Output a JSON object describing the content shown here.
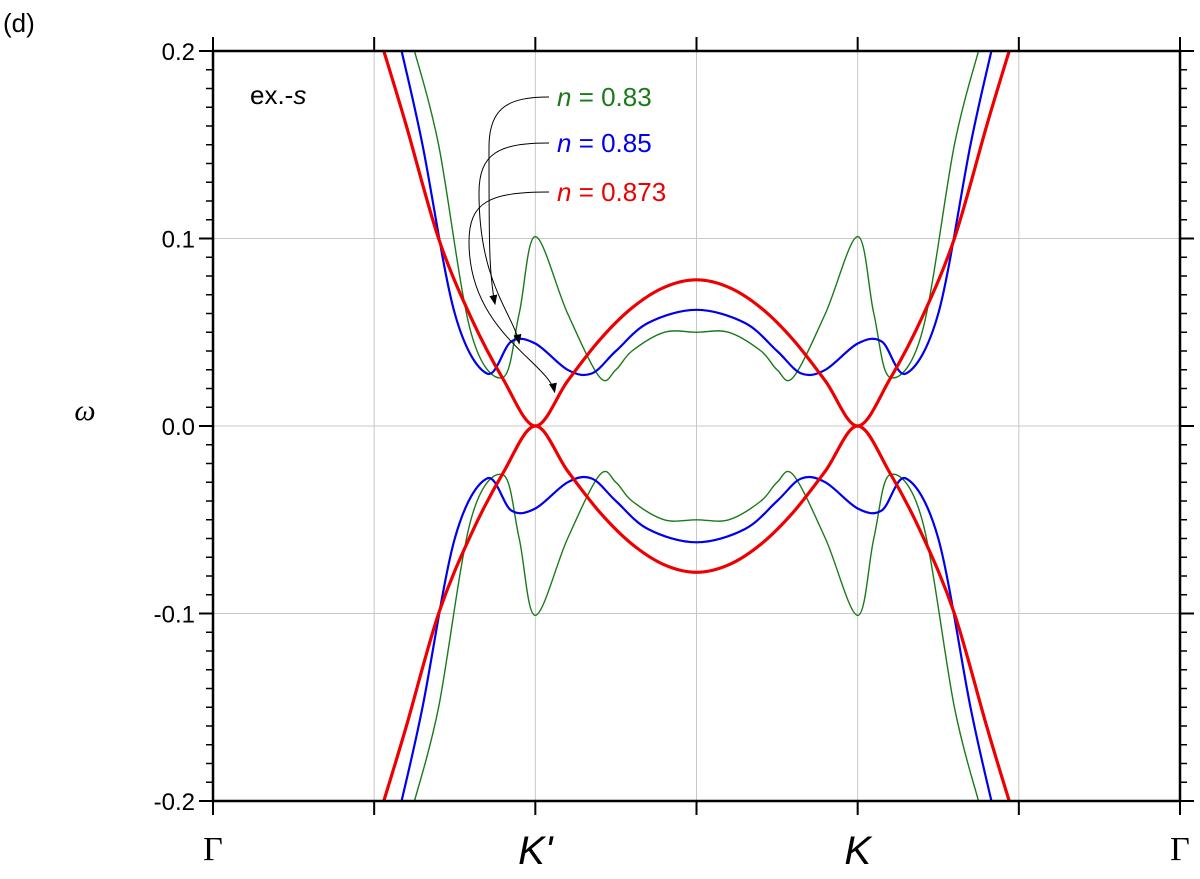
{
  "panel_label": "(d)",
  "chart_data": {
    "type": "line",
    "title": "",
    "ylabel": "ω",
    "ylim": [
      -0.2,
      0.2
    ],
    "yticks": [
      -0.2,
      -0.1,
      0.0,
      0.1,
      0.2
    ],
    "ytick_labels": [
      "-0.2",
      "-0.1",
      "0.0",
      "0.1",
      "0.2"
    ],
    "xlim": [
      0,
      6
    ],
    "xticks": [
      {
        "x": 0,
        "label": "Γ",
        "style": "serif"
      },
      {
        "x": 1,
        "label": "",
        "style": "none"
      },
      {
        "x": 2,
        "label": "K'",
        "style": "italic"
      },
      {
        "x": 3,
        "label": "",
        "style": "none"
      },
      {
        "x": 4,
        "label": "K",
        "style": "italic"
      },
      {
        "x": 5,
        "label": "",
        "style": "none"
      },
      {
        "x": 6,
        "label": "Γ",
        "style": "serif"
      }
    ],
    "grid": true,
    "inset_label": {
      "prefix": "ex.-",
      "italic": "s"
    },
    "series": [
      {
        "name": "n = 0.83",
        "label_var": "n",
        "label_value": "= 0.83",
        "color": "#1a7a1a",
        "width": 1.4,
        "bands": [
          {
            "x": [
              1.25,
              1.4,
              1.6,
              1.8,
              1.9,
              2.0,
              2.2,
              2.4,
              2.5,
              2.6,
              2.8,
              3.0,
              3.2,
              3.4,
              3.5,
              3.6,
              3.8,
              4.0,
              4.1,
              4.2,
              4.4,
              4.6,
              4.75
            ],
            "y": [
              0.2,
              0.15,
              0.05,
              0.026,
              0.06,
              0.101,
              0.06,
              0.026,
              0.03,
              0.04,
              0.05,
              0.05,
              0.05,
              0.04,
              0.03,
              0.026,
              0.06,
              0.101,
              0.06,
              0.026,
              0.05,
              0.15,
              0.2
            ]
          },
          {
            "x": [
              1.25,
              1.4,
              1.6,
              1.8,
              1.9,
              2.0,
              2.2,
              2.4,
              2.5,
              2.6,
              2.8,
              3.0,
              3.2,
              3.4,
              3.5,
              3.6,
              3.8,
              4.0,
              4.1,
              4.2,
              4.4,
              4.6,
              4.75
            ],
            "y": [
              -0.2,
              -0.15,
              -0.05,
              -0.026,
              -0.06,
              -0.101,
              -0.06,
              -0.026,
              -0.03,
              -0.04,
              -0.05,
              -0.05,
              -0.05,
              -0.04,
              -0.03,
              -0.026,
              -0.06,
              -0.101,
              -0.06,
              -0.026,
              -0.05,
              -0.15,
              -0.2
            ]
          }
        ]
      },
      {
        "name": "n = 0.85",
        "label_var": "n",
        "label_value": "= 0.85",
        "color": "#0000ee",
        "width": 2.2,
        "bands": [
          {
            "x": [
              1.17,
              1.3,
              1.5,
              1.7,
              1.85,
              2.0,
              2.2,
              2.35,
              2.5,
              2.7,
              3.0,
              3.3,
              3.5,
              3.65,
              3.8,
              4.0,
              4.15,
              4.3,
              4.5,
              4.7,
              4.83
            ],
            "y": [
              0.2,
              0.15,
              0.06,
              0.028,
              0.045,
              0.044,
              0.03,
              0.028,
              0.04,
              0.055,
              0.062,
              0.055,
              0.04,
              0.028,
              0.03,
              0.044,
              0.045,
              0.028,
              0.06,
              0.15,
              0.2
            ]
          },
          {
            "x": [
              1.17,
              1.3,
              1.5,
              1.7,
              1.85,
              2.0,
              2.2,
              2.35,
              2.5,
              2.7,
              3.0,
              3.3,
              3.5,
              3.65,
              3.8,
              4.0,
              4.15,
              4.3,
              4.5,
              4.7,
              4.83
            ],
            "y": [
              -0.2,
              -0.15,
              -0.06,
              -0.028,
              -0.045,
              -0.044,
              -0.03,
              -0.028,
              -0.04,
              -0.055,
              -0.062,
              -0.055,
              -0.04,
              -0.028,
              -0.03,
              -0.044,
              -0.045,
              -0.028,
              -0.06,
              -0.15,
              -0.2
            ]
          }
        ]
      },
      {
        "name": "n = 0.873",
        "label_var": "n",
        "label_value": "= 0.873",
        "color": "#ee0000",
        "width": 3.2,
        "bands": [
          {
            "x": [
              1.06,
              1.2,
              1.4,
              1.6,
              1.8,
              2.0,
              2.2,
              2.4,
              2.6,
              2.8,
              3.0,
              3.2,
              3.4,
              3.6,
              3.8,
              4.0,
              4.2,
              4.4,
              4.6,
              4.8,
              4.94
            ],
            "y": [
              0.2,
              0.16,
              0.1,
              0.058,
              0.025,
              0.0,
              0.024,
              0.046,
              0.063,
              0.074,
              0.078,
              0.074,
              0.063,
              0.046,
              0.024,
              0.0,
              0.025,
              0.058,
              0.1,
              0.16,
              0.2
            ]
          },
          {
            "x": [
              1.06,
              1.2,
              1.4,
              1.6,
              1.8,
              2.0,
              2.2,
              2.4,
              2.6,
              2.8,
              3.0,
              3.2,
              3.4,
              3.6,
              3.8,
              4.0,
              4.2,
              4.4,
              4.6,
              4.8,
              4.94
            ],
            "y": [
              -0.2,
              -0.16,
              -0.1,
              -0.058,
              -0.025,
              0.0,
              -0.024,
              -0.046,
              -0.063,
              -0.074,
              -0.078,
              -0.074,
              -0.063,
              -0.046,
              -0.024,
              0.0,
              -0.025,
              -0.058,
              -0.1,
              -0.16,
              -0.2
            ]
          }
        ]
      }
    ],
    "annotations": [
      {
        "series": 0,
        "target": {
          "x": 1.75,
          "y": 0.065
        }
      },
      {
        "series": 1,
        "target": {
          "x": 1.9,
          "y": 0.044
        }
      },
      {
        "series": 2,
        "target": {
          "x": 2.12,
          "y": 0.018
        }
      }
    ]
  }
}
